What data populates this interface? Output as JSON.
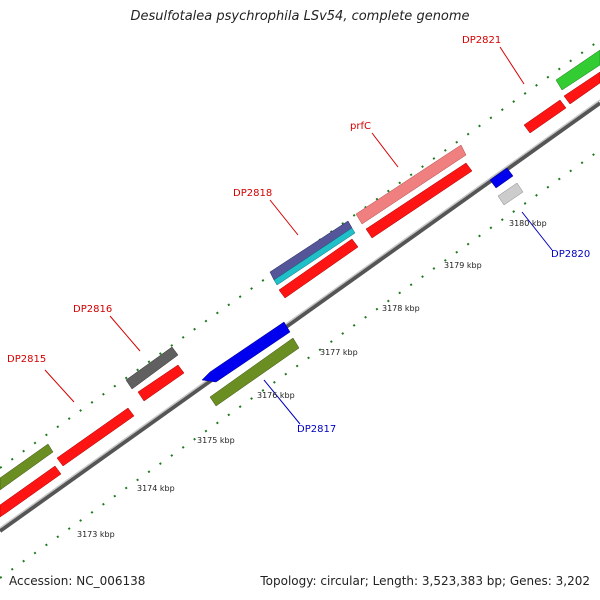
{
  "title": "Desulfotalea psychrophila LSv54, complete genome",
  "accession": "Accession: NC_006138",
  "summary": "Topology: circular; Length: 3,523,383 bp; Genes: 3,202",
  "colors": {
    "backbone_dark": "#555555",
    "backbone_light": "#c8c8c8",
    "tick": "#1e7a1e",
    "label_forward": "#d40000",
    "label_reverse": "#0000c0",
    "scale_text": "#222222"
  },
  "scale_labels": [
    {
      "text": "3173 kbp"
    },
    {
      "text": "3174 kbp"
    },
    {
      "text": "3175 kbp"
    },
    {
      "text": "3176 kbp"
    },
    {
      "text": "3177 kbp"
    },
    {
      "text": "3178 kbp"
    },
    {
      "text": "3179 kbp"
    },
    {
      "text": "3180 kbp"
    }
  ],
  "gene_labels": [
    {
      "text": "DP2815",
      "strand": "forward"
    },
    {
      "text": "DP2816",
      "strand": "forward"
    },
    {
      "text": "DP2818",
      "strand": "forward"
    },
    {
      "text": "prfC",
      "strand": "forward"
    },
    {
      "text": "DP2821",
      "strand": "forward"
    },
    {
      "text": "DP2817",
      "strand": "reverse"
    },
    {
      "text": "DP2820",
      "strand": "reverse"
    }
  ]
}
